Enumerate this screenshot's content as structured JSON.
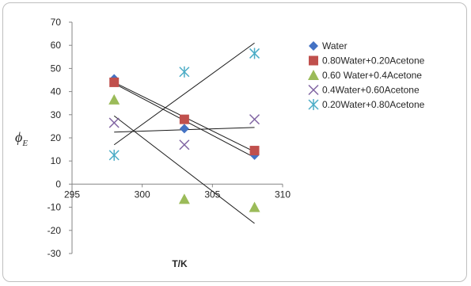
{
  "chart_data": {
    "type": "scatter",
    "title": "",
    "xlabel": "T/K",
    "ylabel": "ϕ",
    "ylabel_sub": "E",
    "xlim": [
      295,
      310
    ],
    "ylim": [
      -30,
      70
    ],
    "x_ticks": [
      295,
      300,
      305,
      310
    ],
    "y_ticks": [
      -30,
      -20,
      -10,
      0,
      10,
      20,
      30,
      40,
      50,
      60,
      70
    ],
    "grid": false,
    "legend_position": "right",
    "series": [
      {
        "name": "Water",
        "marker": "diamond",
        "color": "#4472c4",
        "points": [
          [
            298,
            45.5
          ],
          [
            303,
            24
          ],
          [
            308,
            12.5
          ]
        ],
        "trendline": [
          [
            298,
            43.5
          ],
          [
            308,
            11.5
          ]
        ]
      },
      {
        "name": "0.80Water+0.20Acetone",
        "marker": "square",
        "color": "#c0504d",
        "points": [
          [
            298,
            44
          ],
          [
            303,
            28
          ],
          [
            308,
            14.5
          ]
        ],
        "trendline": [
          [
            298,
            44
          ],
          [
            308,
            14
          ]
        ]
      },
      {
        "name": "0.60 Water+0.4Acetone",
        "marker": "triangle",
        "color": "#9bbb59",
        "points": [
          [
            298,
            36.5
          ],
          [
            303,
            -6.5
          ],
          [
            308,
            -10
          ]
        ],
        "trendline": [
          [
            298,
            29.5
          ],
          [
            308,
            -17
          ]
        ]
      },
      {
        "name": "0.4Water+0.60Acetone",
        "marker": "x",
        "color": "#8064a2",
        "points": [
          [
            298,
            26.5
          ],
          [
            303,
            17
          ],
          [
            308,
            28
          ]
        ],
        "trendline": [
          [
            298,
            22.5
          ],
          [
            308,
            24.5
          ]
        ]
      },
      {
        "name": "0.20Water+0.80Acetone",
        "marker": "star",
        "color": "#4bacc6",
        "points": [
          [
            298,
            12.5
          ],
          [
            303,
            48.5
          ],
          [
            308,
            56.5
          ]
        ],
        "trendline": [
          [
            298,
            17
          ],
          [
            308,
            61
          ]
        ]
      }
    ]
  }
}
